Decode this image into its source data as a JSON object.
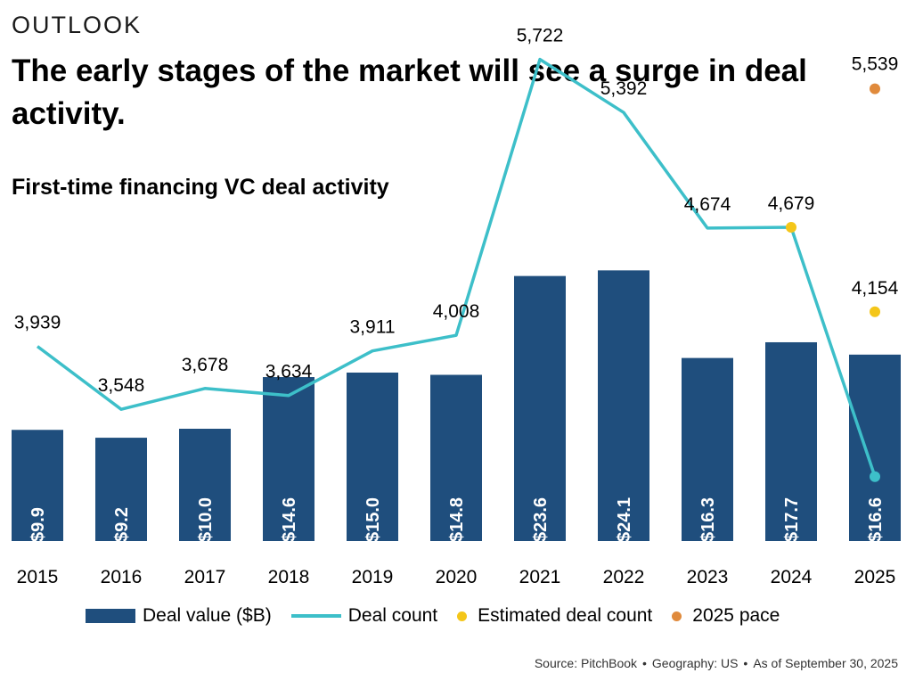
{
  "header": {
    "eyebrow": "OUTLOOK",
    "headline": "The early stages of the market will see a surge in deal activity."
  },
  "colors": {
    "bar": "#1f4e7d",
    "line": "#3dbfc9",
    "estimated": "#f4c619",
    "pace": "#e08a3c"
  },
  "chart_data": {
    "type": "bar",
    "title": "First-time financing VC deal activity",
    "categories": [
      "2015",
      "2016",
      "2017",
      "2018",
      "2019",
      "2020",
      "2021",
      "2022",
      "2023",
      "2024",
      "2025"
    ],
    "series": [
      {
        "name": "Deal value ($B)",
        "kind": "bar",
        "values": [
          9.9,
          9.2,
          10.0,
          14.6,
          15.0,
          14.8,
          23.6,
          24.1,
          16.3,
          17.7,
          16.6
        ],
        "labels": [
          "$9.9",
          "$9.2",
          "$10.0",
          "$14.6",
          "$15.0",
          "$14.8",
          "$23.6",
          "$24.1",
          "$16.3",
          "$17.7",
          "$16.6"
        ]
      },
      {
        "name": "Deal count",
        "kind": "line",
        "values": [
          3939,
          3548,
          3678,
          3634,
          3911,
          4008,
          5722,
          5392,
          4674,
          4679,
          3130
        ],
        "labels": [
          "3,939",
          "3,548",
          "3,678",
          "3,634",
          "3,911",
          "4,008",
          "5,722",
          "5,392",
          "4,674",
          "4,679",
          ""
        ]
      },
      {
        "name": "Estimated deal count",
        "kind": "point",
        "points": [
          {
            "category": "2024",
            "value": 4679,
            "label": ""
          },
          {
            "category": "2025",
            "value": 4154,
            "label": "4,154"
          }
        ]
      },
      {
        "name": "2025 pace",
        "kind": "point",
        "points": [
          {
            "category": "2025",
            "value": 5539,
            "label": "5,539"
          }
        ]
      }
    ],
    "legend": [
      "Deal value ($B)",
      "Deal count",
      "Estimated deal count",
      "2025 pace"
    ],
    "legend_position": "bottom",
    "grid": false
  },
  "source": {
    "parts": [
      "Source: PitchBook",
      "Geography: US",
      "As of September 30, 2025"
    ],
    "separator": "•"
  }
}
